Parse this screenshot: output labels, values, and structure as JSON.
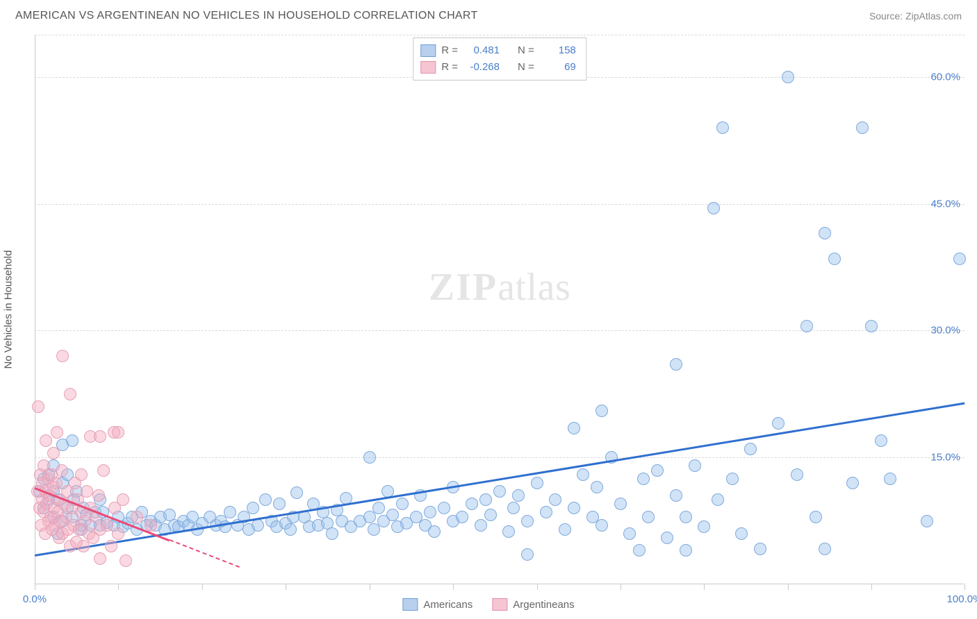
{
  "title": "AMERICAN VS ARGENTINEAN NO VEHICLES IN HOUSEHOLD CORRELATION CHART",
  "source": "Source: ZipAtlas.com",
  "watermark": {
    "bold": "ZIP",
    "rest": "atlas"
  },
  "chart": {
    "type": "scatter",
    "background_color": "#ffffff",
    "grid_color": "#d9d9d9",
    "axis_color": "#c9c9c9",
    "text_color": "#555555",
    "tick_label_color": "#4a7ecb",
    "xlim": [
      0,
      100
    ],
    "ylim": [
      0,
      65
    ],
    "x_axis": {
      "tick_positions": [
        0,
        9,
        18,
        27,
        36,
        45,
        54,
        63,
        72,
        81,
        90,
        100
      ],
      "labels": {
        "0": "0.0%",
        "100": "100.0%"
      }
    },
    "y_axis": {
      "label": "No Vehicles in Household",
      "grid_positions": [
        15,
        30,
        45,
        60,
        65
      ],
      "labels": {
        "15": "15.0%",
        "30": "30.0%",
        "45": "45.0%",
        "60": "60.0%"
      }
    },
    "marker_radius": 9,
    "marker_border_width": 1.5,
    "series": [
      {
        "name": "Americans",
        "fill_color": "rgba(154,192,235,0.45)",
        "stroke_color": "#7fa9dd",
        "legend_swatch_fill": "#b8d0ee",
        "legend_swatch_stroke": "#6f9cd6",
        "trend": {
          "x1": 0,
          "y1": 3.5,
          "x2": 100,
          "y2": 21.5,
          "color": "#2f6fcf",
          "width": 2.5,
          "dash_from_x": 100
        },
        "stats": {
          "R": "0.481",
          "N": "158"
        },
        "points": [
          [
            0.5,
            11
          ],
          [
            1,
            9
          ],
          [
            1,
            12.5
          ],
          [
            1.5,
            13
          ],
          [
            1.5,
            10
          ],
          [
            2,
            8
          ],
          [
            2,
            11
          ],
          [
            2,
            14
          ],
          [
            2.5,
            6
          ],
          [
            2.5,
            10
          ],
          [
            3,
            7.5
          ],
          [
            3,
            12
          ],
          [
            3,
            16.5
          ],
          [
            3.5,
            9
          ],
          [
            3.5,
            13
          ],
          [
            4,
            17
          ],
          [
            4,
            8
          ],
          [
            4.2,
            10
          ],
          [
            4.5,
            11
          ],
          [
            5,
            7
          ],
          [
            5,
            6.5
          ],
          [
            5.2,
            9
          ],
          [
            5.5,
            8.2
          ],
          [
            6,
            7
          ],
          [
            6.5,
            8.5
          ],
          [
            7,
            7
          ],
          [
            7,
            10
          ],
          [
            7.3,
            8.5
          ],
          [
            7.8,
            7.3
          ],
          [
            8.5,
            7
          ],
          [
            9,
            8
          ],
          [
            9.5,
            6.8
          ],
          [
            10,
            7.2
          ],
          [
            10.5,
            8
          ],
          [
            11,
            6.5
          ],
          [
            11.5,
            8.5
          ],
          [
            12,
            7
          ],
          [
            12.5,
            7.5
          ],
          [
            13,
            7
          ],
          [
            13.5,
            8
          ],
          [
            14,
            6.5
          ],
          [
            14.5,
            8.2
          ],
          [
            15,
            7
          ],
          [
            15.5,
            6.8
          ],
          [
            16,
            7.5
          ],
          [
            16.5,
            7
          ],
          [
            17,
            8
          ],
          [
            17.5,
            6.5
          ],
          [
            18,
            7.2
          ],
          [
            18.8,
            8
          ],
          [
            19.5,
            7
          ],
          [
            20,
            7.5
          ],
          [
            20.5,
            6.8
          ],
          [
            21,
            8.5
          ],
          [
            21.8,
            7
          ],
          [
            22.5,
            8
          ],
          [
            23,
            6.5
          ],
          [
            23.5,
            9
          ],
          [
            24,
            7
          ],
          [
            24.8,
            10
          ],
          [
            25.5,
            7.5
          ],
          [
            26,
            6.8
          ],
          [
            26.3,
            9.5
          ],
          [
            27,
            7.2
          ],
          [
            27.5,
            6.5
          ],
          [
            27.8,
            8
          ],
          [
            28.2,
            10.8
          ],
          [
            29,
            8
          ],
          [
            29.5,
            6.8
          ],
          [
            30,
            9.5
          ],
          [
            30.5,
            7
          ],
          [
            31,
            8.5
          ],
          [
            31.5,
            7.2
          ],
          [
            32,
            6
          ],
          [
            32.5,
            8.8
          ],
          [
            33,
            7.5
          ],
          [
            33.5,
            10.2
          ],
          [
            34,
            6.8
          ],
          [
            35,
            7.5
          ],
          [
            36,
            15
          ],
          [
            36,
            8
          ],
          [
            36.5,
            6.5
          ],
          [
            37,
            9
          ],
          [
            37.5,
            7.5
          ],
          [
            38,
            11
          ],
          [
            38.5,
            8.2
          ],
          [
            39,
            6.8
          ],
          [
            39.5,
            9.5
          ],
          [
            40,
            7.2
          ],
          [
            41,
            8
          ],
          [
            41.5,
            10.5
          ],
          [
            42,
            7
          ],
          [
            42.5,
            8.5
          ],
          [
            43,
            6.2
          ],
          [
            44,
            9
          ],
          [
            45,
            7.5
          ],
          [
            45,
            11.5
          ],
          [
            46,
            8
          ],
          [
            47,
            9.5
          ],
          [
            48,
            7
          ],
          [
            48.5,
            10
          ],
          [
            49,
            8.2
          ],
          [
            50,
            11
          ],
          [
            51,
            6.2
          ],
          [
            51.5,
            9
          ],
          [
            52,
            10.5
          ],
          [
            53,
            7.5
          ],
          [
            53,
            3.5
          ],
          [
            54,
            12
          ],
          [
            55,
            8.5
          ],
          [
            56,
            10
          ],
          [
            57,
            6.5
          ],
          [
            58,
            18.5
          ],
          [
            58,
            9
          ],
          [
            59,
            13
          ],
          [
            60,
            8
          ],
          [
            60.5,
            11.5
          ],
          [
            61,
            7
          ],
          [
            61,
            20.5
          ],
          [
            62,
            15
          ],
          [
            63,
            9.5
          ],
          [
            64,
            6
          ],
          [
            65,
            4
          ],
          [
            65.5,
            12.5
          ],
          [
            66,
            8
          ],
          [
            67,
            13.5
          ],
          [
            68,
            5.5
          ],
          [
            69,
            26
          ],
          [
            69,
            10.5
          ],
          [
            70,
            8
          ],
          [
            71,
            14
          ],
          [
            72,
            6.8
          ],
          [
            73,
            44.5
          ],
          [
            73.5,
            10
          ],
          [
            74,
            54
          ],
          [
            75,
            12.5
          ],
          [
            76,
            6
          ],
          [
            77,
            16
          ],
          [
            78,
            4.2
          ],
          [
            80,
            19
          ],
          [
            81,
            60
          ],
          [
            82,
            13
          ],
          [
            83,
            30.5
          ],
          [
            84,
            8
          ],
          [
            85,
            41.5
          ],
          [
            86,
            38.5
          ],
          [
            88,
            12
          ],
          [
            89,
            54
          ],
          [
            90,
            30.5
          ],
          [
            91,
            17
          ],
          [
            92,
            12.5
          ],
          [
            96,
            7.5
          ],
          [
            99.5,
            38.5
          ],
          [
            85,
            4.2
          ],
          [
            70,
            4
          ]
        ]
      },
      {
        "name": "Argentineans",
        "fill_color": "rgba(244,170,190,0.45)",
        "stroke_color": "#e6a0b5",
        "legend_swatch_fill": "#f5c5d2",
        "legend_swatch_stroke": "#e290aa",
        "trend": {
          "x1": 0,
          "y1": 11.5,
          "x2": 14.5,
          "y2": 5.3,
          "color": "#e94b77",
          "width": 2.5,
          "dash_to_x": 22
        },
        "stats": {
          "R": "-0.268",
          "N": "69"
        },
        "points": [
          [
            0.3,
            11
          ],
          [
            0.4,
            21
          ],
          [
            0.5,
            9
          ],
          [
            0.6,
            13
          ],
          [
            0.7,
            7
          ],
          [
            0.8,
            12
          ],
          [
            0.8,
            10
          ],
          [
            1,
            8.5
          ],
          [
            1,
            14
          ],
          [
            1.1,
            6
          ],
          [
            1.2,
            11
          ],
          [
            1.2,
            17
          ],
          [
            1.3,
            9.5
          ],
          [
            1.4,
            12.5
          ],
          [
            1.5,
            7.5
          ],
          [
            1.6,
            10.5
          ],
          [
            1.7,
            8
          ],
          [
            1.8,
            13
          ],
          [
            1.9,
            6.5
          ],
          [
            2,
            11.5
          ],
          [
            2,
            15.5
          ],
          [
            2.1,
            9
          ],
          [
            2.2,
            7
          ],
          [
            2.3,
            12
          ],
          [
            2.4,
            18
          ],
          [
            2.5,
            8.5
          ],
          [
            2.6,
            5.5
          ],
          [
            2.7,
            10
          ],
          [
            2.8,
            7.5
          ],
          [
            2.9,
            13.5
          ],
          [
            3,
            6
          ],
          [
            3,
            27
          ],
          [
            3.2,
            9.5
          ],
          [
            3.4,
            8
          ],
          [
            3.5,
            11
          ],
          [
            3.6,
            6.5
          ],
          [
            3.8,
            22.5
          ],
          [
            3.8,
            4.5
          ],
          [
            4,
            9
          ],
          [
            4.2,
            7
          ],
          [
            4.3,
            12
          ],
          [
            4.5,
            5
          ],
          [
            4.6,
            10
          ],
          [
            4.8,
            6.5
          ],
          [
            5,
            8.5
          ],
          [
            5,
            13
          ],
          [
            5.2,
            4.5
          ],
          [
            5.4,
            7.5
          ],
          [
            5.6,
            11
          ],
          [
            5.8,
            6
          ],
          [
            6,
            17.5
          ],
          [
            6,
            9
          ],
          [
            6.3,
            5.5
          ],
          [
            6.6,
            8
          ],
          [
            6.9,
            10.5
          ],
          [
            7,
            6.5
          ],
          [
            7,
            17.5
          ],
          [
            7,
            3
          ],
          [
            7.4,
            13.5
          ],
          [
            7.8,
            7
          ],
          [
            8.2,
            4.5
          ],
          [
            8.5,
            18
          ],
          [
            8.6,
            9
          ],
          [
            9,
            18
          ],
          [
            9,
            6
          ],
          [
            9.5,
            10
          ],
          [
            9.8,
            2.8
          ],
          [
            11,
            8
          ],
          [
            12.5,
            7
          ]
        ]
      }
    ],
    "stats_box_labels": {
      "R": "R =",
      "N": "N ="
    },
    "bottom_legend": [
      {
        "label": "Americans",
        "series_index": 0
      },
      {
        "label": "Argentineans",
        "series_index": 1
      }
    ]
  }
}
